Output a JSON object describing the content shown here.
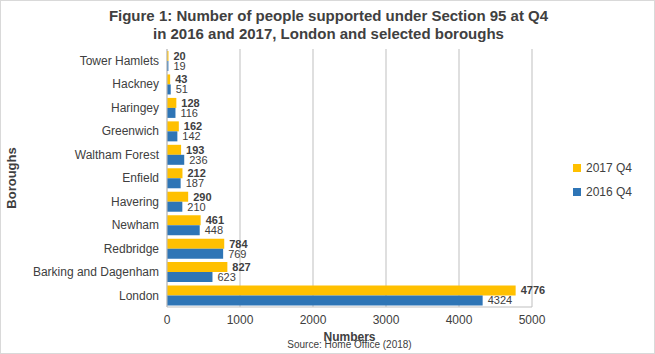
{
  "chart_data": {
    "type": "bar",
    "orientation": "horizontal",
    "title": "Figure 1: Number of people supported under Section 95 at Q4 in 2016 and 2017, London and selected boroughs",
    "subtitle": "Source: Home Office (2018)",
    "x_label": "Numbers",
    "y_label": "Boroughs",
    "categories": [
      "Tower Hamlets",
      "Hackney",
      "Haringey",
      "Greenwich",
      "Waltham Forest",
      "Enfield",
      "Havering",
      "Newham",
      "Redbridge",
      "Barking and Dagenham",
      "London"
    ],
    "series": [
      {
        "name": "2017 Q4",
        "color": "#ffc000",
        "values": [
          20,
          43,
          128,
          162,
          193,
          212,
          290,
          461,
          784,
          827,
          4776
        ]
      },
      {
        "name": "2016 Q4",
        "color": "#2e75b6",
        "values": [
          19,
          51,
          116,
          142,
          236,
          187,
          210,
          448,
          769,
          623,
          4324
        ]
      }
    ],
    "xlim": [
      0,
      5000
    ],
    "xticks": [
      0,
      1000,
      2000,
      3000,
      4000,
      5000
    ],
    "grid": true,
    "legend": "right",
    "data_labels": true
  }
}
